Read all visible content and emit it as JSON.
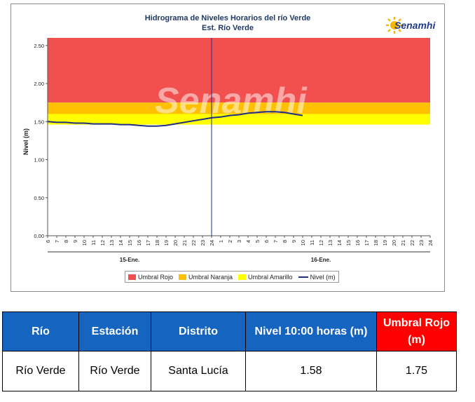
{
  "chart_data": {
    "type": "line",
    "title": "Hidrograma de Niveles Horarios del río Verde",
    "subtitle": "Est. Río Verde",
    "ylabel": "Nivel (m)",
    "ylim": [
      0,
      2.5
    ],
    "yticks": [
      "0.00",
      "0.50",
      "1.00",
      "1.50",
      "2.00",
      "2.50"
    ],
    "xticks": [
      "6",
      "7",
      "8",
      "9",
      "10",
      "11",
      "12",
      "13",
      "14",
      "15",
      "16",
      "17",
      "18",
      "19",
      "20",
      "21",
      "22",
      "23",
      "24",
      "1",
      "2",
      "3",
      "4",
      "5",
      "6",
      "7",
      "8",
      "9",
      "10",
      "11",
      "12",
      "13",
      "14",
      "15",
      "16",
      "17",
      "18",
      "19",
      "20",
      "21",
      "22",
      "23",
      "24"
    ],
    "day_labels": [
      "15-Ene.",
      "16-Ene."
    ],
    "thresholds": [
      {
        "name": "Umbral Rojo",
        "from": 1.75,
        "to": 2.6,
        "color": "#f24f4f"
      },
      {
        "name": "Umbral Naranja",
        "from": 1.6,
        "to": 1.75,
        "color": "#ffc000"
      },
      {
        "name": "Umbral Amarillo",
        "from": 1.46,
        "to": 1.6,
        "color": "#ffff00"
      }
    ],
    "series": [
      {
        "name": "Nivel (m)",
        "color": "#1f2f86",
        "x": [
          0,
          1,
          2,
          3,
          4,
          5,
          6,
          7,
          8,
          9,
          10,
          11,
          12,
          13,
          14,
          15,
          16,
          17,
          18,
          19,
          20,
          21,
          22,
          23,
          24,
          25,
          26,
          27,
          28
        ],
        "values": [
          1.5,
          1.49,
          1.49,
          1.48,
          1.48,
          1.47,
          1.47,
          1.47,
          1.46,
          1.46,
          1.45,
          1.44,
          1.44,
          1.45,
          1.47,
          1.49,
          1.51,
          1.53,
          1.55,
          1.56,
          1.58,
          1.59,
          1.61,
          1.62,
          1.63,
          1.63,
          1.62,
          1.6,
          1.58
        ]
      }
    ],
    "grid": false,
    "legend": "bottom"
  },
  "logo": {
    "text": "Senamhi"
  },
  "watermark": "Senamhi",
  "legend": [
    {
      "label": "Umbral Rojo",
      "color": "#f24f4f",
      "kind": "swatch"
    },
    {
      "label": "Umbral Naranja",
      "color": "#ffc000",
      "kind": "swatch"
    },
    {
      "label": "Umbral Amarillo",
      "color": "#ffff00",
      "kind": "swatch"
    },
    {
      "label": "Nivel (m)",
      "color": "#1f2f86",
      "kind": "line"
    }
  ],
  "table": {
    "headers": [
      "Río",
      "Estación",
      "Distrito",
      "Nivel 10:00 horas (m)",
      "Umbral Rojo (m)"
    ],
    "row": [
      "Río Verde",
      "Río Verde",
      "Santa Lucía",
      "1.58",
      "1.75"
    ]
  }
}
